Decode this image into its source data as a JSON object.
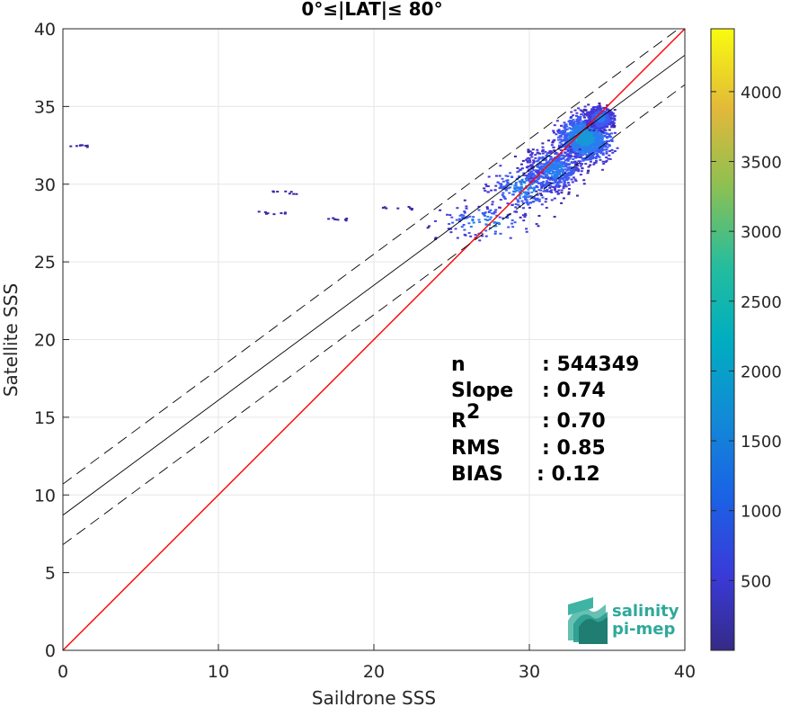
{
  "chart_data": {
    "type": "heatmap",
    "title": "0°≤|LAT|≤ 80°",
    "xlabel": "Saildrone SSS",
    "ylabel": "Satellite SSS",
    "xlim": [
      0,
      40
    ],
    "ylim": [
      0,
      40
    ],
    "xticks": [
      "0",
      "10",
      "20",
      "30",
      "40"
    ],
    "yticks": [
      "0",
      "5",
      "10",
      "15",
      "20",
      "25",
      "30",
      "35",
      "40"
    ],
    "grid": true,
    "colorbar": {
      "ticks": [
        "500",
        "1000",
        "1500",
        "2000",
        "2500",
        "3000",
        "3500",
        "4000"
      ],
      "tick_values": [
        500,
        1000,
        1500,
        2000,
        2500,
        3000,
        3500,
        4000
      ],
      "range": [
        0,
        4450
      ],
      "colormap": "parula"
    },
    "lines": [
      {
        "label": "1:1",
        "slope": 1.0,
        "intercept": 0.0,
        "color": "#ff0000",
        "style": "solid"
      },
      {
        "label": "fit",
        "slope": 0.74,
        "intercept": 8.7,
        "color": "#000000",
        "style": "solid"
      },
      {
        "label": "fit + 2 std",
        "slope": 0.74,
        "intercept": 10.7,
        "color": "#000000",
        "style": "dashed"
      },
      {
        "label": "fit - 2 std",
        "slope": 0.74,
        "intercept": 6.8,
        "color": "#000000",
        "style": "dashed"
      }
    ],
    "density_clusters": [
      {
        "x": 33.5,
        "y": 33.0,
        "sx": 1.3,
        "sy": 1.1,
        "n": 1400
      },
      {
        "x": 34.5,
        "y": 34.3,
        "sx": 0.7,
        "sy": 0.6,
        "n": 500
      },
      {
        "x": 31.5,
        "y": 31.0,
        "sx": 1.5,
        "sy": 1.2,
        "n": 600
      },
      {
        "x": 29.5,
        "y": 29.8,
        "sx": 1.8,
        "sy": 1.3,
        "n": 250
      },
      {
        "x": 27.0,
        "y": 27.6,
        "sx": 2.5,
        "sy": 0.9,
        "n": 120
      }
    ],
    "stats": [
      {
        "label": "n",
        "value": ": 544349"
      },
      {
        "label": "Slope",
        "value": ": 0.74"
      },
      {
        "label": "R",
        "sup": "2",
        "value": ": 0.70"
      },
      {
        "label": "RMS",
        "value": ": 0.85"
      },
      {
        "label": "BIAS",
        "value": ": 0.12"
      }
    ]
  },
  "logo": {
    "line1": "salinity",
    "line2": "pi-mep"
  },
  "colors": {
    "one_to_one": "#ff0000",
    "fit": "#000000",
    "logo": "#2fa99a"
  }
}
